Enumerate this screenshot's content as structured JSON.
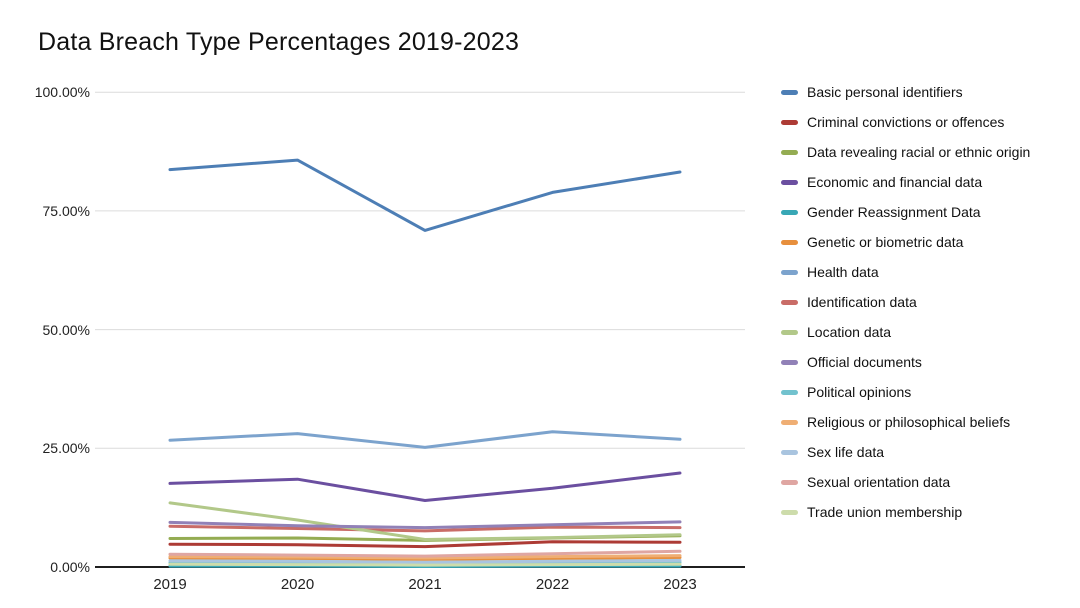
{
  "chart_data": {
    "type": "line",
    "title": "Data Breach Type Percentages 2019-2023",
    "categories": [
      "2019",
      "2020",
      "2021",
      "2022",
      "2023"
    ],
    "xlabel": "",
    "ylabel": "",
    "y_axis": {
      "tick_labels": [
        "100.00%",
        "75.00%",
        "50.00%",
        "25.00%",
        "0.00%"
      ],
      "tick_values": [
        100,
        75,
        50,
        25,
        0
      ],
      "min": 0,
      "max": 100,
      "format": "percent"
    },
    "grid": true,
    "legend_position": "right",
    "axis_color": "#1f1f1f",
    "gridline_color": "#dcdcdc",
    "series": [
      {
        "name": "Basic personal identifiers",
        "color": "#4d7eb5",
        "values": [
          83.7,
          85.7,
          70.9,
          78.9,
          83.2
        ]
      },
      {
        "name": "Criminal convictions or offences",
        "color": "#ad3b35",
        "values": [
          4.8,
          4.7,
          4.3,
          5.3,
          5.2
        ]
      },
      {
        "name": "Data revealing racial or ethnic origin",
        "color": "#94ac52",
        "values": [
          6.0,
          6.1,
          5.6,
          6.1,
          6.6
        ]
      },
      {
        "name": "Economic and financial data",
        "color": "#6b4fa0",
        "values": [
          17.6,
          18.5,
          14.0,
          16.6,
          19.8
        ]
      },
      {
        "name": "Gender Reassignment Data",
        "color": "#38a7b5",
        "values": [
          0.2,
          0.2,
          0.1,
          0.2,
          0.2
        ]
      },
      {
        "name": "Genetic or biometric data",
        "color": "#e78f3d",
        "values": [
          1.9,
          1.8,
          1.6,
          1.8,
          2.0
        ]
      },
      {
        "name": "Health data",
        "color": "#7ca3cd",
        "values": [
          26.7,
          28.1,
          25.2,
          28.5,
          26.9
        ]
      },
      {
        "name": "Identification data",
        "color": "#c96c67",
        "values": [
          8.6,
          8.1,
          7.6,
          8.4,
          8.3
        ]
      },
      {
        "name": "Location data",
        "color": "#b2c889",
        "values": [
          13.5,
          9.9,
          5.8,
          6.2,
          6.8
        ]
      },
      {
        "name": "Official documents",
        "color": "#9181b7",
        "values": [
          9.4,
          8.7,
          8.3,
          8.9,
          9.5
        ]
      },
      {
        "name": "Political opinions",
        "color": "#72c2ce",
        "values": [
          0.9,
          0.8,
          0.7,
          0.9,
          1.0
        ]
      },
      {
        "name": "Religious or philosophical beliefs",
        "color": "#efae74",
        "values": [
          2.2,
          2.1,
          1.9,
          2.2,
          2.4
        ]
      },
      {
        "name": "Sex life data",
        "color": "#a9c4df",
        "values": [
          1.3,
          1.2,
          1.0,
          1.2,
          1.4
        ]
      },
      {
        "name": "Sexual orientation data",
        "color": "#dfa6a2",
        "values": [
          2.7,
          2.5,
          2.3,
          2.8,
          3.3
        ]
      },
      {
        "name": "Trade union membership",
        "color": "#cddcab",
        "values": [
          0.6,
          0.5,
          0.4,
          0.5,
          0.6
        ]
      }
    ]
  }
}
